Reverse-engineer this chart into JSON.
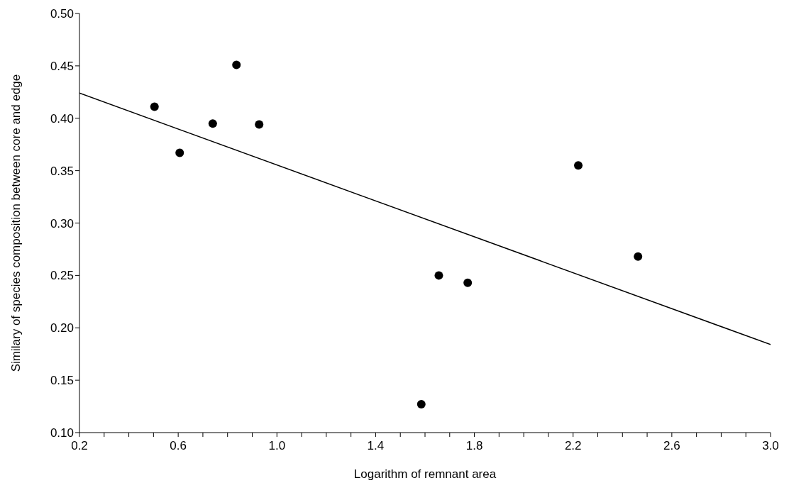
{
  "chart_data": {
    "type": "scatter",
    "xlabel": "Logarithm of remnant area",
    "ylabel": "Similary of species composition between core and edge",
    "xlim": [
      0.2,
      3.0
    ],
    "ylim": [
      0.1,
      0.5
    ],
    "xticks": [
      {
        "value": 0.2,
        "label": "0.2"
      },
      {
        "value": 0.3,
        "label": null
      },
      {
        "value": 0.4,
        "label": null
      },
      {
        "value": 0.5,
        "label": null
      },
      {
        "value": 0.6,
        "label": "0.6"
      },
      {
        "value": 0.7,
        "label": null
      },
      {
        "value": 0.8,
        "label": null
      },
      {
        "value": 0.9,
        "label": null
      },
      {
        "value": 1.0,
        "label": "1.0"
      },
      {
        "value": 1.1,
        "label": null
      },
      {
        "value": 1.2,
        "label": null
      },
      {
        "value": 1.3,
        "label": null
      },
      {
        "value": 1.4,
        "label": "1.4"
      },
      {
        "value": 1.5,
        "label": null
      },
      {
        "value": 1.6,
        "label": null
      },
      {
        "value": 1.7,
        "label": null
      },
      {
        "value": 1.8,
        "label": "1.8"
      },
      {
        "value": 1.9,
        "label": null
      },
      {
        "value": 2.0,
        "label": null
      },
      {
        "value": 2.1,
        "label": null
      },
      {
        "value": 2.2,
        "label": "2.2"
      },
      {
        "value": 2.3,
        "label": null
      },
      {
        "value": 2.4,
        "label": null
      },
      {
        "value": 2.5,
        "label": null
      },
      {
        "value": 2.6,
        "label": "2.6"
      },
      {
        "value": 2.7,
        "label": null
      },
      {
        "value": 2.8,
        "label": null
      },
      {
        "value": 2.9,
        "label": null
      },
      {
        "value": 3.0,
        "label": "3.0"
      }
    ],
    "yticks": [
      {
        "value": 0.1,
        "label": "0.10"
      },
      {
        "value": 0.15,
        "label": "0.15"
      },
      {
        "value": 0.2,
        "label": "0.20"
      },
      {
        "value": 0.25,
        "label": "0.25"
      },
      {
        "value": 0.3,
        "label": "0.30"
      },
      {
        "value": 0.35,
        "label": "0.35"
      },
      {
        "value": 0.4,
        "label": "0.40"
      },
      {
        "value": 0.45,
        "label": "0.45"
      },
      {
        "value": 0.5,
        "label": "0.50"
      }
    ],
    "grid": false,
    "legend": false,
    "marker": "circle",
    "series": [
      {
        "color": "#000000",
        "x": [
          0.504,
          0.606,
          0.74,
          0.836,
          0.928,
          1.585,
          1.656,
          1.773,
          2.221,
          2.463
        ],
        "values": [
          0.411,
          0.367,
          0.395,
          0.451,
          0.394,
          0.127,
          0.25,
          0.243,
          0.355,
          0.268
        ]
      },
      {
        "type": "line",
        "color": "#000000",
        "marker": "none",
        "line_style": "solid",
        "x": [
          0.2,
          3.0
        ],
        "values": [
          0.424,
          0.184
        ]
      }
    ]
  }
}
